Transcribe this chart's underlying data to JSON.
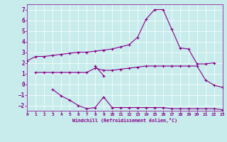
{
  "bg_color": "#c8ecec",
  "line_color": "#880088",
  "grid_color": "#ffffff",
  "xlabel": "Windchill (Refroidissement éolien,°C)",
  "xlim": [
    0,
    23
  ],
  "ylim": [
    -2.5,
    7.5
  ],
  "xticks": [
    0,
    1,
    2,
    3,
    4,
    5,
    6,
    7,
    8,
    9,
    10,
    11,
    12,
    13,
    14,
    15,
    16,
    17,
    18,
    19,
    20,
    21,
    22,
    23
  ],
  "yticks": [
    -2,
    -1,
    0,
    1,
    2,
    3,
    4,
    5,
    6,
    7
  ],
  "series": [
    {
      "x": [
        0,
        1,
        2,
        3,
        4,
        5,
        6,
        7,
        8,
        9,
        10,
        11,
        12,
        13,
        14,
        15,
        16,
        17,
        18,
        19,
        20,
        21,
        22
      ],
      "y": [
        2.2,
        2.6,
        2.6,
        2.7,
        2.8,
        2.9,
        3.0,
        3.0,
        3.1,
        3.2,
        3.3,
        3.5,
        3.7,
        4.4,
        6.1,
        7.0,
        7.0,
        5.2,
        3.4,
        3.3,
        1.9,
        1.9,
        2.0
      ]
    },
    {
      "x": [
        1,
        2,
        3,
        4,
        5,
        6,
        7,
        8,
        9,
        10,
        11,
        12,
        13,
        14,
        15,
        16,
        17,
        18,
        19,
        20,
        21,
        22,
        23
      ],
      "y": [
        1.1,
        1.1,
        1.1,
        1.1,
        1.1,
        1.1,
        1.1,
        1.5,
        1.3,
        1.3,
        1.4,
        1.5,
        1.6,
        1.7,
        1.7,
        1.7,
        1.7,
        1.7,
        1.7,
        1.7,
        0.4,
        -0.1,
        -0.3
      ]
    },
    {
      "x": [
        3,
        4,
        5,
        6,
        7,
        8,
        9,
        10,
        11,
        12,
        13,
        14,
        15,
        16,
        17,
        18,
        19,
        20,
        21,
        22,
        23
      ],
      "y": [
        -0.5,
        -1.1,
        -1.5,
        -2.0,
        -2.3,
        -2.2,
        -1.2,
        -2.2,
        -2.2,
        -2.2,
        -2.2,
        -2.2,
        -2.2,
        -2.2,
        -2.3,
        -2.3,
        -2.3,
        -2.3,
        -2.3,
        -2.3,
        -2.4
      ]
    },
    {
      "x": [
        8,
        9
      ],
      "y": [
        1.7,
        0.8
      ]
    }
  ]
}
